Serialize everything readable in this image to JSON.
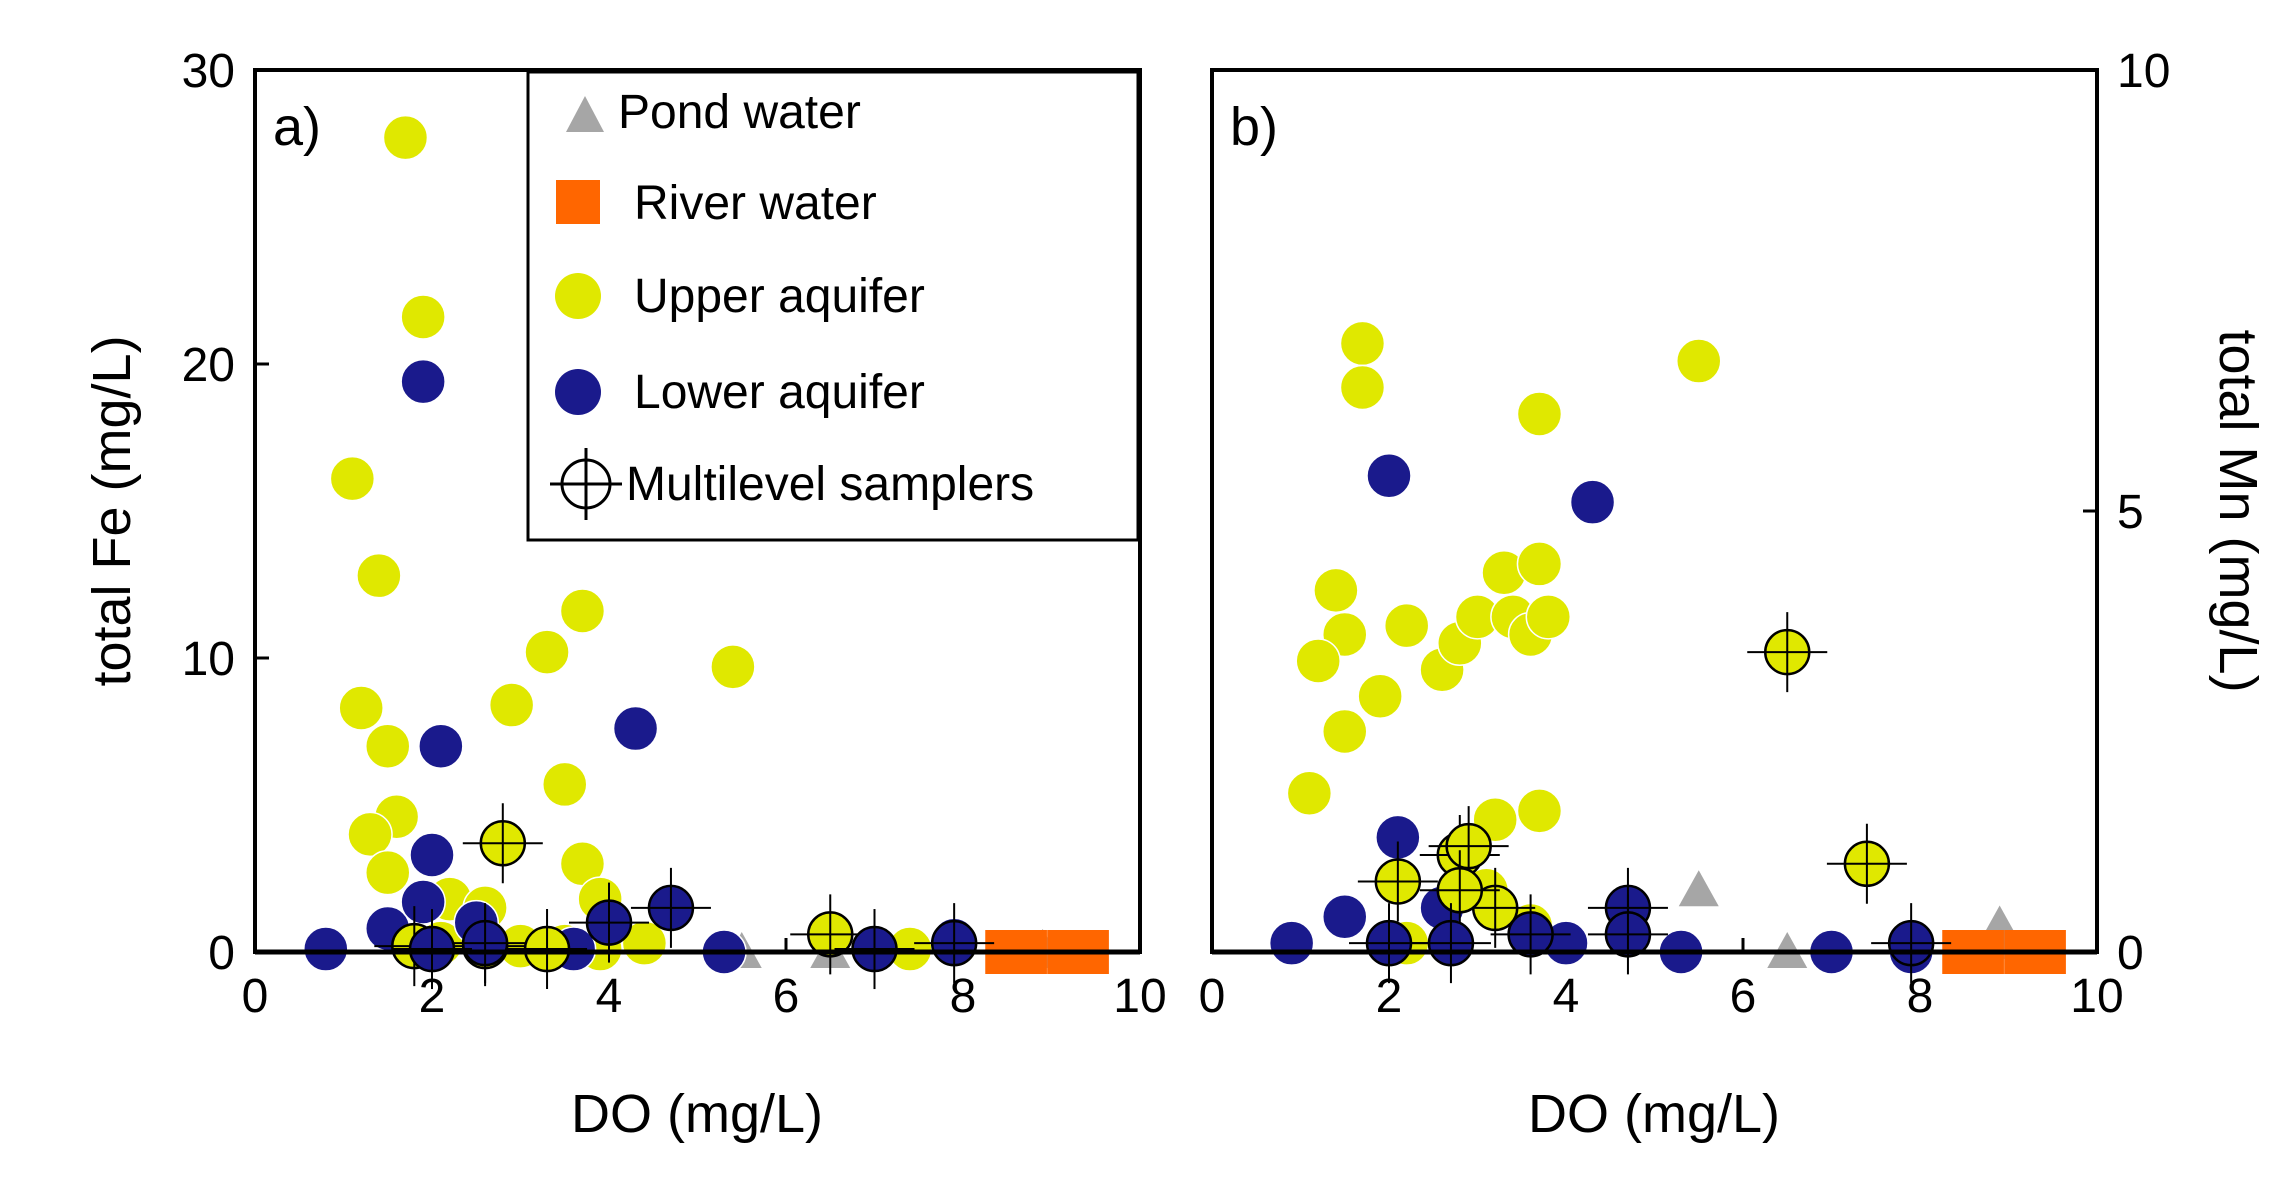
{
  "colors": {
    "pond": "#a6a6a6",
    "river": "#ff6600",
    "upper": "#e0e800",
    "lower": "#1a1a8c",
    "axis": "#000000"
  },
  "legend": {
    "position": "top-right of panel a",
    "items": [
      {
        "key": "pond",
        "label": "Pond water",
        "marker": "triangle"
      },
      {
        "key": "river",
        "label": "River water",
        "marker": "square"
      },
      {
        "key": "upper",
        "label": "Upper aquifer",
        "marker": "circle"
      },
      {
        "key": "lower",
        "label": "Lower aquifer",
        "marker": "circle"
      },
      {
        "key": "multilevel",
        "label": "Multilevel samplers",
        "marker": "crosshair-circle"
      }
    ]
  },
  "chart_data": [
    {
      "type": "scatter",
      "panel": "a)",
      "xlabel": "DO (mg/L)",
      "ylabel": "total Fe (mg/L)",
      "xlim": [
        0,
        10
      ],
      "ylim": [
        0,
        30
      ],
      "xticks": [
        0,
        2,
        4,
        6,
        8,
        10
      ],
      "yticks": [
        0,
        10,
        20,
        30
      ],
      "series": [
        {
          "name": "Pond water",
          "key": "pond",
          "marker": "triangle",
          "points": [
            [
              5.5,
              0
            ],
            [
              6.5,
              0
            ],
            [
              8.8,
              0
            ],
            [
              8.9,
              0.1
            ]
          ]
        },
        {
          "name": "River water",
          "key": "river",
          "marker": "square",
          "points": [
            [
              8.5,
              0
            ],
            [
              8.7,
              0
            ],
            [
              9.2,
              0
            ],
            [
              9.4,
              0
            ]
          ]
        },
        {
          "name": "Upper aquifer",
          "key": "upper",
          "marker": "circle",
          "points": [
            [
              1.7,
              27.7
            ],
            [
              1.9,
              21.6
            ],
            [
              1.1,
              16.1
            ],
            [
              1.4,
              12.8
            ],
            [
              1.2,
              8.3
            ],
            [
              1.5,
              7.0
            ],
            [
              1.6,
              4.6
            ],
            [
              1.3,
              4.0
            ],
            [
              1.5,
              2.7
            ],
            [
              2.2,
              1.8
            ],
            [
              2.6,
              1.5
            ],
            [
              2.9,
              8.4
            ],
            [
              3.3,
              10.2
            ],
            [
              3.5,
              5.7
            ],
            [
              3.7,
              11.6
            ],
            [
              3.7,
              3.0
            ],
            [
              3.9,
              1.8
            ],
            [
              5.4,
              9.7
            ],
            [
              2.1,
              0.3
            ],
            [
              3.0,
              0.2
            ],
            [
              3.5,
              0.2
            ],
            [
              3.9,
              0.1
            ],
            [
              4.4,
              0.3
            ],
            [
              7.4,
              0.1
            ]
          ]
        },
        {
          "name": "Lower aquifer",
          "key": "lower",
          "marker": "circle",
          "points": [
            [
              1.9,
              19.4
            ],
            [
              2.1,
              7.0
            ],
            [
              4.3,
              7.6
            ],
            [
              2.0,
              3.3
            ],
            [
              1.9,
              1.7
            ],
            [
              1.5,
              0.8
            ],
            [
              0.8,
              0.1
            ],
            [
              2.5,
              1.0
            ],
            [
              3.6,
              0.1
            ],
            [
              5.3,
              0
            ],
            [
              7.0,
              0.1
            ],
            [
              7.9,
              0.4
            ]
          ]
        },
        {
          "name": "Multilevel samplers",
          "key": "multilevel",
          "marker": "crosshair",
          "points": [
            [
              2.8,
              3.7,
              "upper"
            ],
            [
              1.8,
              0.2,
              "upper"
            ],
            [
              2.6,
              0.2,
              "upper"
            ],
            [
              3.3,
              0.1,
              "upper"
            ],
            [
              6.5,
              0.6,
              "upper"
            ],
            [
              2.6,
              0.3,
              "lower"
            ],
            [
              4.0,
              1.0,
              "lower"
            ],
            [
              4.7,
              1.5,
              "lower"
            ],
            [
              2.0,
              0.1,
              "lower"
            ],
            [
              7.0,
              0.1,
              "lower"
            ],
            [
              7.9,
              0.3,
              "lower"
            ]
          ]
        }
      ]
    },
    {
      "type": "scatter",
      "panel": "b)",
      "xlabel": "DO (mg/L)",
      "ylabel": "total Mn (mg/L)",
      "xlim": [
        0,
        10
      ],
      "ylim": [
        0,
        10
      ],
      "xticks": [
        0,
        2,
        4,
        6,
        8,
        10
      ],
      "yticks": [
        0,
        5,
        10
      ],
      "series": [
        {
          "name": "Pond water",
          "key": "pond",
          "marker": "triangle",
          "points": [
            [
              5.5,
              0.7
            ],
            [
              6.5,
              0
            ],
            [
              8.9,
              0.3
            ],
            [
              8.9,
              0.1
            ]
          ]
        },
        {
          "name": "River water",
          "key": "river",
          "marker": "square",
          "points": [
            [
              8.5,
              0
            ],
            [
              8.7,
              0
            ],
            [
              9.2,
              0
            ],
            [
              9.4,
              0
            ]
          ]
        },
        {
          "name": "Upper aquifer",
          "key": "upper",
          "marker": "circle",
          "points": [
            [
              1.7,
              6.9
            ],
            [
              1.7,
              6.4
            ],
            [
              5.5,
              6.7
            ],
            [
              3.7,
              6.1
            ],
            [
              1.4,
              4.1
            ],
            [
              1.5,
              3.6
            ],
            [
              2.2,
              3.7
            ],
            [
              1.2,
              3.3
            ],
            [
              1.5,
              2.5
            ],
            [
              1.9,
              2.9
            ],
            [
              2.6,
              3.2
            ],
            [
              2.8,
              3.5
            ],
            [
              3.0,
              3.8
            ],
            [
              3.3,
              4.3
            ],
            [
              3.4,
              3.8
            ],
            [
              3.6,
              3.6
            ],
            [
              3.7,
              4.4
            ],
            [
              3.8,
              3.8
            ],
            [
              1.1,
              1.8
            ],
            [
              3.2,
              1.5
            ],
            [
              3.7,
              1.6
            ],
            [
              3.1,
              0.7
            ],
            [
              3.6,
              0.3
            ],
            [
              2.2,
              0.1
            ]
          ]
        },
        {
          "name": "Lower aquifer",
          "key": "lower",
          "marker": "circle",
          "points": [
            [
              2.0,
              5.4
            ],
            [
              4.3,
              5.1
            ],
            [
              2.1,
              1.3
            ],
            [
              1.5,
              0.4
            ],
            [
              2.6,
              0.5
            ],
            [
              0.9,
              0.1
            ],
            [
              3.6,
              0.2
            ],
            [
              5.3,
              0
            ],
            [
              7.0,
              0
            ],
            [
              7.9,
              0
            ],
            [
              4.0,
              0.1
            ]
          ]
        },
        {
          "name": "Multilevel samplers",
          "key": "multilevel",
          "marker": "crosshair",
          "points": [
            [
              6.5,
              3.4,
              "upper"
            ],
            [
              7.4,
              1.0,
              "upper"
            ],
            [
              2.8,
              1.1,
              "upper"
            ],
            [
              2.9,
              1.2,
              "upper"
            ],
            [
              2.1,
              0.8,
              "upper"
            ],
            [
              3.2,
              0.5,
              "upper"
            ],
            [
              2.8,
              0.7,
              "upper"
            ],
            [
              2.0,
              0.1,
              "lower"
            ],
            [
              2.7,
              0.1,
              "lower"
            ],
            [
              4.7,
              0.5,
              "lower"
            ],
            [
              3.6,
              0.2,
              "lower"
            ],
            [
              4.7,
              0.2,
              "lower"
            ],
            [
              7.9,
              0.1,
              "lower"
            ]
          ]
        }
      ]
    }
  ]
}
